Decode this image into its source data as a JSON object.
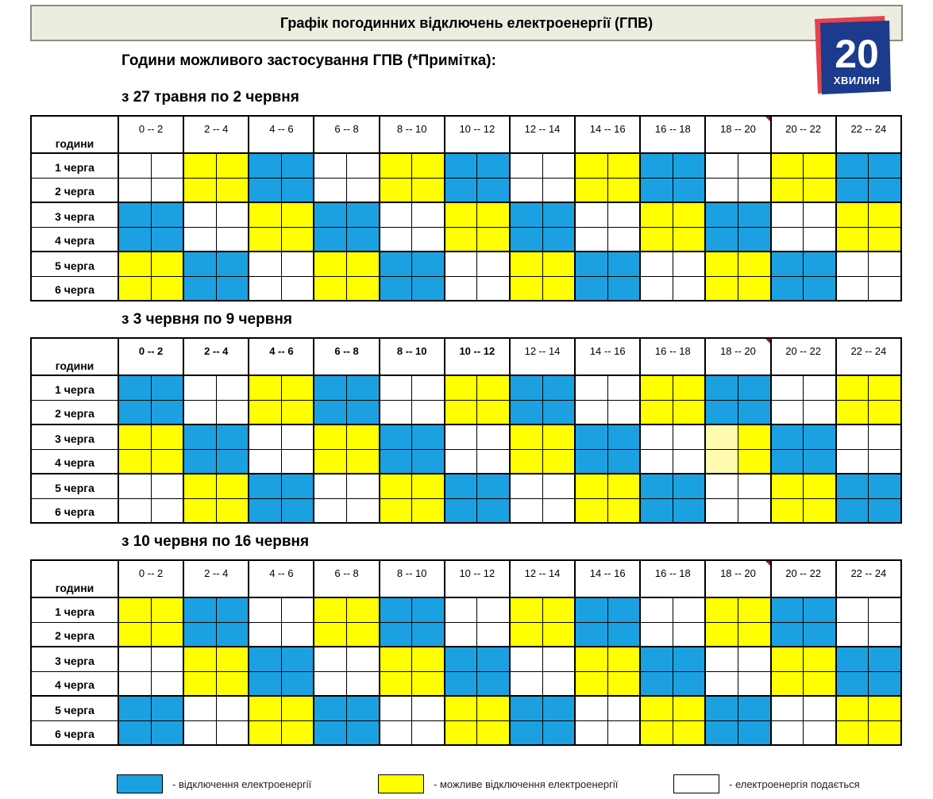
{
  "header": {
    "title": "Графік погодинних відключень електроенергії (ГПВ)",
    "subtitle": "Години можливого застосування ГПВ (*Примітка):"
  },
  "logo": {
    "number": "20",
    "word": "ХВИЛИН"
  },
  "colors": {
    "blue": "#1ba1e2",
    "yellow": "#ffff00",
    "white": "#ffffff",
    "pale_yellow": "#fefbb0",
    "mark": "#cc0000"
  },
  "header_label": "години",
  "hour_ranges": [
    "0 -- 2",
    "2 -- 4",
    "4 -- 6",
    "6 -- 8",
    "8 -- 10",
    "10 -- 12",
    "12 -- 14",
    "14 -- 16",
    "16 -- 18",
    "18 -- 20",
    "20 -- 22",
    "22 -- 24"
  ],
  "schedules": [
    {
      "period": "з 27 травня по 2 червня",
      "queues": [
        {
          "label": "1 черга",
          "cells": "WWYYBBWWYYBBWWYYBBWWYYBB"
        },
        {
          "label": "2 черга",
          "cells": "WWYYBBWWYYBBWWYYBBWWYYBB"
        },
        {
          "label": "3 черга",
          "cells": "BBWWYYBBWWYYBBWWYYBBWWYY"
        },
        {
          "label": "4 черга",
          "cells": "BBWWYYBBWWYYBBWWYYBBWWYY"
        },
        {
          "label": "5 черга",
          "cells": "YYBBWWYYBBWWYYBBWWYYBBWW"
        },
        {
          "label": "6 черга",
          "cells": "YYBBWWYYBBWWYYBBWWYYBBWW"
        }
      ]
    },
    {
      "period": "з 3 червня по 9 червня",
      "queues": [
        {
          "label": "1 черга",
          "cells": "BBWWYYBBWWYYBBWWYYBBWWYY"
        },
        {
          "label": "2 черга",
          "cells": "BBWWYYBBWWYYBBWWYYBBWWYY"
        },
        {
          "label": "3 черга",
          "cells": "YYBBWWYYBBWWYYBBWWPYBBWW"
        },
        {
          "label": "4 черга",
          "cells": "YYBBWWYYBBWWYYBBWWPYBBWW"
        },
        {
          "label": "5 черга",
          "cells": "WWYYBBWWYYBBWWYYBBWWYYBB"
        },
        {
          "label": "6 черга",
          "cells": "WWYYBBWWYYBBWWYYBBWWYYBB"
        }
      ]
    },
    {
      "period": "з 10 червня по 16 червня",
      "queues": [
        {
          "label": "1 черга",
          "cells": "YYBBWWYYBBWWYYBBWWYYBBWW"
        },
        {
          "label": "2 черга",
          "cells": "YYBBWWYYBBWWYYBBWWYYBBWW"
        },
        {
          "label": "3 черга",
          "cells": "WWYYBBWWYYBBWWYYBBWWYYBB"
        },
        {
          "label": "4 черга",
          "cells": "WWYYBBWWYYBBWWYYBBWWYYBB"
        },
        {
          "label": "5 черга",
          "cells": "BBWWYYBBWWYYBBWWYYBBWWYY"
        },
        {
          "label": "6 черга",
          "cells": "BBWWYYBBWWYYBBWWYYBBWWYY"
        }
      ]
    }
  ],
  "legend": {
    "blue_label": "- відключення електроенергії",
    "yellow_label": "- можливе відключення електроенергії",
    "white_label": "- електроенергія подається"
  }
}
